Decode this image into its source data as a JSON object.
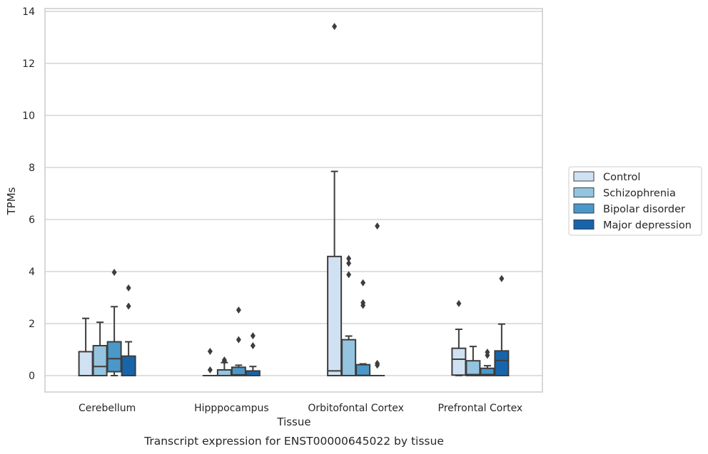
{
  "chart_data": {
    "type": "box",
    "xlabel": "Tissue",
    "ylabel": "TPMs",
    "caption": "Transcript expression for ENST00000645022 by tissue",
    "ylim": [
      -0.65,
      14.1
    ],
    "yticks": [
      0,
      2,
      4,
      6,
      8,
      10,
      12,
      14
    ],
    "grid": true,
    "legend_position": "right",
    "categories": [
      "Cerebellum",
      "Hipppocampus",
      "Orbitofontal Cortex",
      "Prefrontal Cortex"
    ],
    "series": [
      {
        "name": "Control",
        "color": "#d0e1f2",
        "boxes": [
          {
            "q1": 0,
            "median": 0,
            "q3": 0.92,
            "whisker_low": 0,
            "whisker_high": 2.2,
            "outliers": []
          },
          {
            "q1": 0,
            "median": 0,
            "q3": 0,
            "whisker_low": 0,
            "whisker_high": 0,
            "outliers": [
              0.22,
              0.93
            ]
          },
          {
            "q1": 0,
            "median": 0.18,
            "q3": 4.58,
            "whisker_low": 0,
            "whisker_high": 7.85,
            "outliers": [
              13.42
            ]
          },
          {
            "q1": 0.02,
            "median": 0.63,
            "q3": 1.05,
            "whisker_low": 0,
            "whisker_high": 1.78,
            "outliers": [
              2.77
            ]
          }
        ]
      },
      {
        "name": "Schizophrenia",
        "color": "#94c4df",
        "boxes": [
          {
            "q1": 0,
            "median": 0.35,
            "q3": 1.15,
            "whisker_low": 0,
            "whisker_high": 2.05,
            "outliers": []
          },
          {
            "q1": 0,
            "median": 0,
            "q3": 0.22,
            "whisker_low": 0,
            "whisker_high": 0.5,
            "outliers": [
              0.55,
              0.6
            ]
          },
          {
            "q1": 0,
            "median": 0,
            "q3": 1.38,
            "whisker_low": 0,
            "whisker_high": 1.52,
            "outliers": [
              3.88,
              4.32,
              4.5
            ]
          },
          {
            "q1": 0,
            "median": 0.04,
            "q3": 0.57,
            "whisker_low": 0,
            "whisker_high": 1.12,
            "outliers": []
          }
        ]
      },
      {
        "name": "Bipolar disorder",
        "color": "#4a98c9",
        "boxes": [
          {
            "q1": 0.15,
            "median": 0.65,
            "q3": 1.3,
            "whisker_low": 0,
            "whisker_high": 2.65,
            "outliers": [
              3.97
            ]
          },
          {
            "q1": 0,
            "median": 0.03,
            "q3": 0.32,
            "whisker_low": 0,
            "whisker_high": 0.4,
            "outliers": [
              1.38,
              2.52
            ]
          },
          {
            "q1": 0,
            "median": 0.01,
            "q3": 0.42,
            "whisker_low": 0,
            "whisker_high": 0.45,
            "outliers": [
              2.7,
              2.8,
              3.57
            ]
          },
          {
            "q1": 0,
            "median": 0.04,
            "q3": 0.28,
            "whisker_low": 0,
            "whisker_high": 0.38,
            "outliers": [
              0.78,
              0.9
            ]
          }
        ]
      },
      {
        "name": "Major depression",
        "color": "#1764ab",
        "boxes": [
          {
            "q1": 0,
            "median": 0,
            "q3": 0.75,
            "whisker_low": 0,
            "whisker_high": 1.3,
            "outliers": [
              2.67,
              3.37
            ]
          },
          {
            "q1": 0,
            "median": 0,
            "q3": 0.18,
            "whisker_low": 0,
            "whisker_high": 0.35,
            "outliers": [
              1.15,
              1.53
            ]
          },
          {
            "q1": 0,
            "median": 0,
            "q3": 0,
            "whisker_low": 0,
            "whisker_high": 0,
            "outliers": [
              0.4,
              0.47,
              5.75
            ]
          },
          {
            "q1": 0,
            "median": 0.58,
            "q3": 0.95,
            "whisker_low": 0,
            "whisker_high": 1.98,
            "outliers": [
              3.73
            ]
          }
        ]
      }
    ]
  }
}
